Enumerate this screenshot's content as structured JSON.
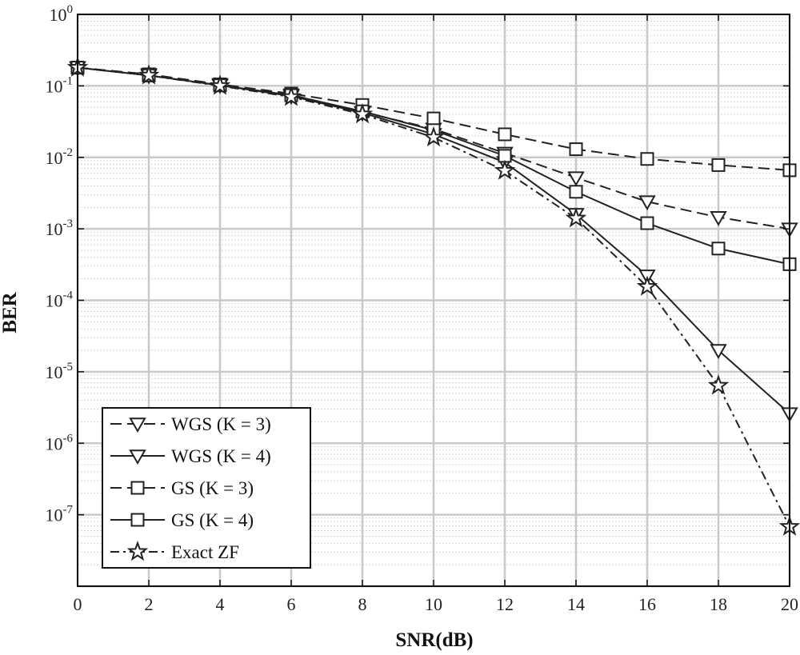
{
  "chart_data": {
    "type": "line",
    "xlabel": "SNR(dB)",
    "ylabel": "BER",
    "x": [
      0,
      2,
      4,
      6,
      8,
      10,
      12,
      14,
      16,
      18,
      20
    ],
    "xlim": [
      0,
      20
    ],
    "ylim": [
      1e-08,
      1
    ],
    "yscale": "log",
    "grid": true,
    "minor_grid": true,
    "legend_position": "bottom-left",
    "x_ticks": [
      0,
      2,
      4,
      6,
      8,
      10,
      12,
      14,
      16,
      18,
      20
    ],
    "y_ticks": [
      {
        "base": "10",
        "exp": "0",
        "value": 1
      },
      {
        "base": "10",
        "exp": "-1",
        "value": 0.1
      },
      {
        "base": "10",
        "exp": "-2",
        "value": 0.01
      },
      {
        "base": "10",
        "exp": "-3",
        "value": 0.001
      },
      {
        "base": "10",
        "exp": "-4",
        "value": 0.0001
      },
      {
        "base": "10",
        "exp": "-5",
        "value": 1e-05
      },
      {
        "base": "10",
        "exp": "-6",
        "value": 1e-06
      },
      {
        "base": "10",
        "exp": "-7",
        "value": 1e-07
      }
    ],
    "series": [
      {
        "name": "WGS (K = 3)",
        "marker": "triangle-down",
        "line": "dashed",
        "color": "#222222",
        "values": [
          0.18,
          0.145,
          0.105,
          0.075,
          0.043,
          0.025,
          0.0115,
          0.0052,
          0.0024,
          0.00145,
          0.001
        ]
      },
      {
        "name": "WGS (K = 4)",
        "marker": "triangle-down",
        "line": "solid",
        "color": "#222222",
        "values": [
          0.18,
          0.14,
          0.102,
          0.072,
          0.042,
          0.021,
          0.0085,
          0.0016,
          0.00022,
          2e-05,
          2.6e-06
        ]
      },
      {
        "name": "GS (K = 3)",
        "marker": "square",
        "line": "dashed",
        "color": "#222222",
        "values": [
          0.18,
          0.145,
          0.105,
          0.078,
          0.054,
          0.035,
          0.021,
          0.013,
          0.0095,
          0.0078,
          0.0066
        ]
      },
      {
        "name": "GS (K = 4)",
        "marker": "square",
        "line": "solid",
        "color": "#222222",
        "values": [
          0.18,
          0.14,
          0.102,
          0.074,
          0.044,
          0.024,
          0.0105,
          0.0033,
          0.0012,
          0.00053,
          0.00032
        ]
      },
      {
        "name": "Exact ZF",
        "marker": "star",
        "line": "dashdot",
        "color": "#222222",
        "values": [
          0.18,
          0.14,
          0.1,
          0.07,
          0.04,
          0.019,
          0.0065,
          0.0014,
          0.000155,
          6.4e-06,
          6.8e-08
        ]
      }
    ]
  }
}
